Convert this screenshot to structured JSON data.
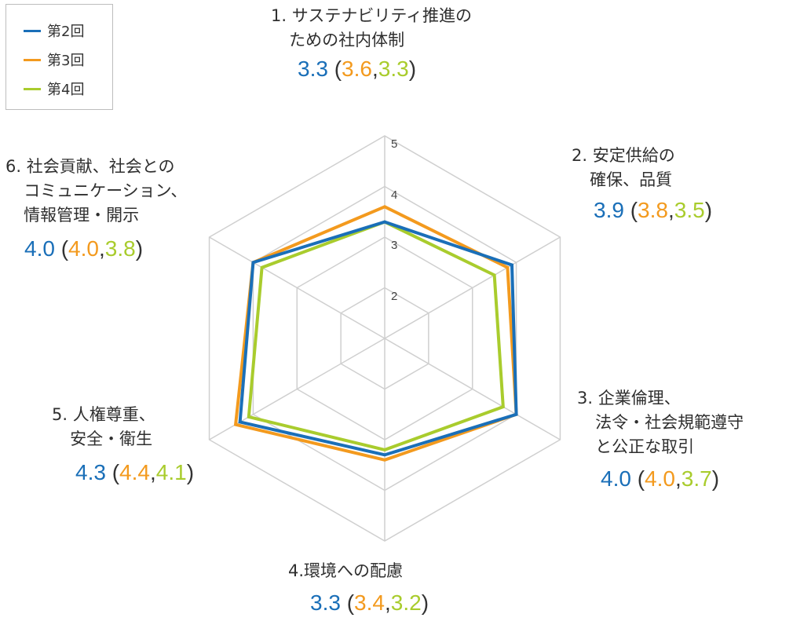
{
  "legend": [
    {
      "label": "第2回",
      "color": "#1a6fb8"
    },
    {
      "label": "第3回",
      "color": "#f39a1e"
    },
    {
      "label": "第4回",
      "color": "#a9cc2d"
    }
  ],
  "axes": [
    {
      "number": "1.",
      "title_lines": [
        "サステナビリティ推進の",
        "ための社内体制"
      ],
      "score_main": "3.3",
      "score_prev": "3.6",
      "score_prev2": "3.3"
    },
    {
      "number": "2.",
      "title_lines": [
        "安定供給の",
        "確保、品質"
      ],
      "score_main": "3.9",
      "score_prev": "3.8",
      "score_prev2": "3.5"
    },
    {
      "number": "3.",
      "title_lines": [
        "企業倫理、",
        "法令・社会規範遵守",
        "と公正な取引"
      ],
      "score_main": "4.0",
      "score_prev": "4.0",
      "score_prev2": "3.7"
    },
    {
      "number": "4.",
      "title_lines": [
        "環境への配慮"
      ],
      "score_main": "3.3",
      "score_prev": "3.4",
      "score_prev2": "3.2"
    },
    {
      "number": "5.",
      "title_lines": [
        "人権尊重、",
        "安全・衛生"
      ],
      "score_main": "4.3",
      "score_prev": "4.4",
      "score_prev2": "4.1"
    },
    {
      "number": "6.",
      "title_lines": [
        "社会貢献、社会との",
        "コミュニケーション、",
        "情報管理・開示"
      ],
      "score_main": "4.0",
      "score_prev": "4.0",
      "score_prev2": "3.8"
    }
  ],
  "chart_data": {
    "type": "radar",
    "categories": [
      "サステナビリティ推進のための社内体制",
      "安定供給の確保、品質",
      "企業倫理、法令・社会規範遵守と公正な取引",
      "環境への配慮",
      "人権尊重、安全・衛生",
      "社会貢献、社会とのコミュニケーション、情報管理・開示"
    ],
    "series": [
      {
        "name": "第2回",
        "color": "#1a6fb8",
        "values": [
          3.3,
          3.9,
          4.0,
          3.3,
          4.3,
          4.0
        ]
      },
      {
        "name": "第3回",
        "color": "#f39a1e",
        "values": [
          3.6,
          3.8,
          4.0,
          3.4,
          4.4,
          4.0
        ]
      },
      {
        "name": "第4回",
        "color": "#a9cc2d",
        "values": [
          3.3,
          3.5,
          3.7,
          3.2,
          4.1,
          3.8
        ]
      }
    ],
    "r_range": [
      1,
      5
    ],
    "tick_labels": [
      "2",
      "3",
      "4",
      "5"
    ],
    "grid": true,
    "legend_position": "top-left"
  }
}
